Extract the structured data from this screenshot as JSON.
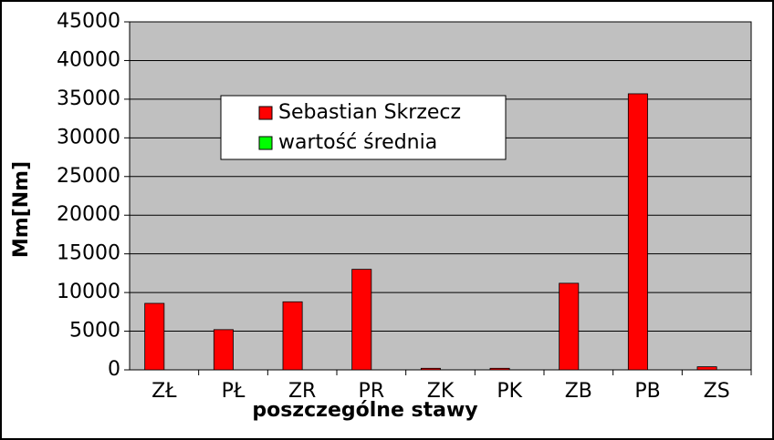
{
  "chart_data": {
    "type": "bar",
    "xlabel": "poszczególne stawy",
    "ylabel": "Mm[Nm]",
    "categories": [
      "ZŁ",
      "PŁ",
      "ZR",
      "PR",
      "ZK",
      "PK",
      "ZB",
      "PB",
      "ZS"
    ],
    "series": [
      {
        "name": "Sebastian Skrzecz",
        "color": "#ff0000",
        "values": [
          8600,
          5200,
          8800,
          13000,
          200,
          200,
          11200,
          35700,
          400
        ]
      },
      {
        "name": "wartość średnia",
        "color": "#00ff00",
        "values": [
          null,
          null,
          null,
          null,
          null,
          null,
          null,
          null,
          null
        ]
      }
    ],
    "ylim": [
      0,
      45000
    ],
    "yticks": [
      0,
      5000,
      10000,
      15000,
      20000,
      25000,
      30000,
      35000,
      40000,
      45000
    ],
    "grid": true,
    "legend": "top-left"
  }
}
